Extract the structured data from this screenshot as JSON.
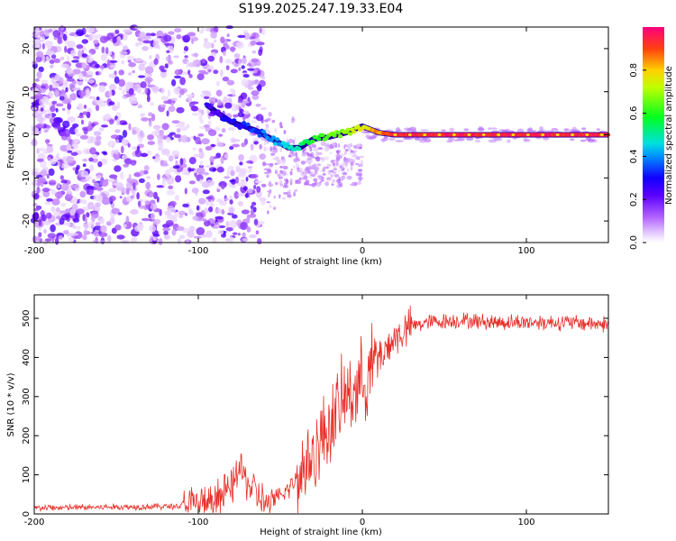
{
  "title": "S199.2025.247.19.33.E04",
  "chart_data": [
    {
      "type": "heatmap",
      "name": "spectrogram",
      "xlabel": "Height of straight line (km)",
      "ylabel": "Frequency (Hz)",
      "xlim": [
        -200,
        150
      ],
      "ylim": [
        -25,
        25
      ],
      "xticks": [
        -200,
        -100,
        0,
        100
      ],
      "yticks": [
        -20,
        -10,
        0,
        10,
        20
      ],
      "colorbar": {
        "label": "Normalized spectral amplitude",
        "range": [
          0.0,
          1.0
        ],
        "ticks": [
          0.0,
          0.2,
          0.4,
          0.6,
          0.8
        ]
      },
      "ridge": [
        {
          "x": -95,
          "f": 7,
          "a": 0.25
        },
        {
          "x": -88,
          "f": 5,
          "a": 0.25
        },
        {
          "x": -80,
          "f": 3,
          "a": 0.3
        },
        {
          "x": -72,
          "f": 2,
          "a": 0.3
        },
        {
          "x": -65,
          "f": 1,
          "a": 0.35
        },
        {
          "x": -55,
          "f": -1,
          "a": 0.4
        },
        {
          "x": -45,
          "f": -3,
          "a": 0.45
        },
        {
          "x": -38,
          "f": -3,
          "a": 0.5
        },
        {
          "x": -30,
          "f": -1,
          "a": 0.6
        },
        {
          "x": -20,
          "f": -0.5,
          "a": 0.65
        },
        {
          "x": -10,
          "f": 0.5,
          "a": 0.7
        },
        {
          "x": 0,
          "f": 2,
          "a": 0.75
        },
        {
          "x": 10,
          "f": 0.5,
          "a": 0.85
        },
        {
          "x": 20,
          "f": 0,
          "a": 0.95
        },
        {
          "x": 150,
          "f": 0,
          "a": 0.95
        }
      ]
    },
    {
      "type": "line",
      "name": "snr",
      "xlabel": "Height of straight line (km)",
      "ylabel": "SNR (10 * v/v)",
      "xlim": [
        -200,
        150
      ],
      "ylim": [
        0,
        560
      ],
      "xticks": [
        -200,
        -100,
        0,
        100
      ],
      "yticks": [
        0,
        100,
        200,
        300,
        400,
        500
      ],
      "color": "#e8302a",
      "envelope": {
        "x": [
          -200,
          -110,
          -100,
          -80,
          -75,
          -70,
          -60,
          -50,
          -40,
          -30,
          -20,
          -10,
          0,
          10,
          20,
          30,
          40,
          60,
          80,
          100,
          120,
          150
        ],
        "mean": [
          15,
          20,
          25,
          60,
          120,
          80,
          30,
          40,
          90,
          150,
          230,
          300,
          340,
          400,
          450,
          480,
          490,
          495,
          490,
          490,
          490,
          485
        ]
      }
    }
  ]
}
